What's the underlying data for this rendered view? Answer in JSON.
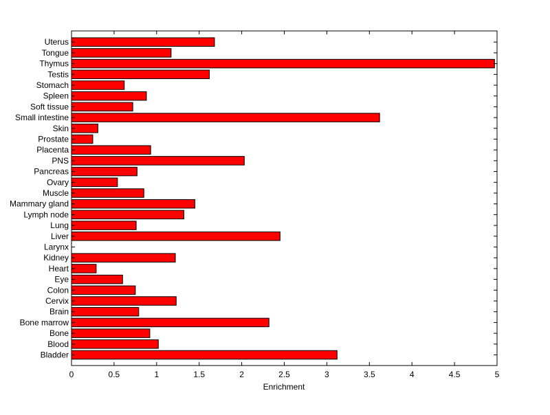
{
  "chart_data": {
    "type": "bar",
    "orientation": "horizontal",
    "title": "",
    "xlabel": "Enrichment",
    "ylabel": "",
    "xlim": [
      0,
      5
    ],
    "xticks": [
      "0",
      "0.5",
      "1",
      "1.5",
      "2",
      "2.5",
      "3",
      "3.5",
      "4",
      "4.5",
      "5"
    ],
    "grid": false,
    "legend": "none",
    "bar_color": "#ff0000",
    "bar_edge_color": "#000000",
    "categories": [
      "Bladder",
      "Blood",
      "Bone",
      "Bone marrow",
      "Brain",
      "Cervix",
      "Colon",
      "Eye",
      "Heart",
      "Kidney",
      "Larynx",
      "Liver",
      "Lung",
      "Lymph node",
      "Mammary gland",
      "Muscle",
      "Ovary",
      "Pancreas",
      "PNS",
      "Placenta",
      "Prostate",
      "Skin",
      "Small intestine",
      "Soft tissue",
      "Spleen",
      "Stomach",
      "Testis",
      "Thymus",
      "Tongue",
      "Uterus"
    ],
    "values": [
      3.12,
      1.02,
      0.92,
      2.32,
      0.79,
      1.23,
      0.75,
      0.6,
      0.29,
      1.22,
      0,
      2.45,
      0.76,
      1.32,
      1.45,
      0.85,
      0.54,
      0.77,
      2.03,
      0.93,
      0.25,
      0.31,
      3.62,
      0.72,
      0.88,
      0.62,
      1.62,
      4.97,
      1.17,
      1.68
    ]
  }
}
